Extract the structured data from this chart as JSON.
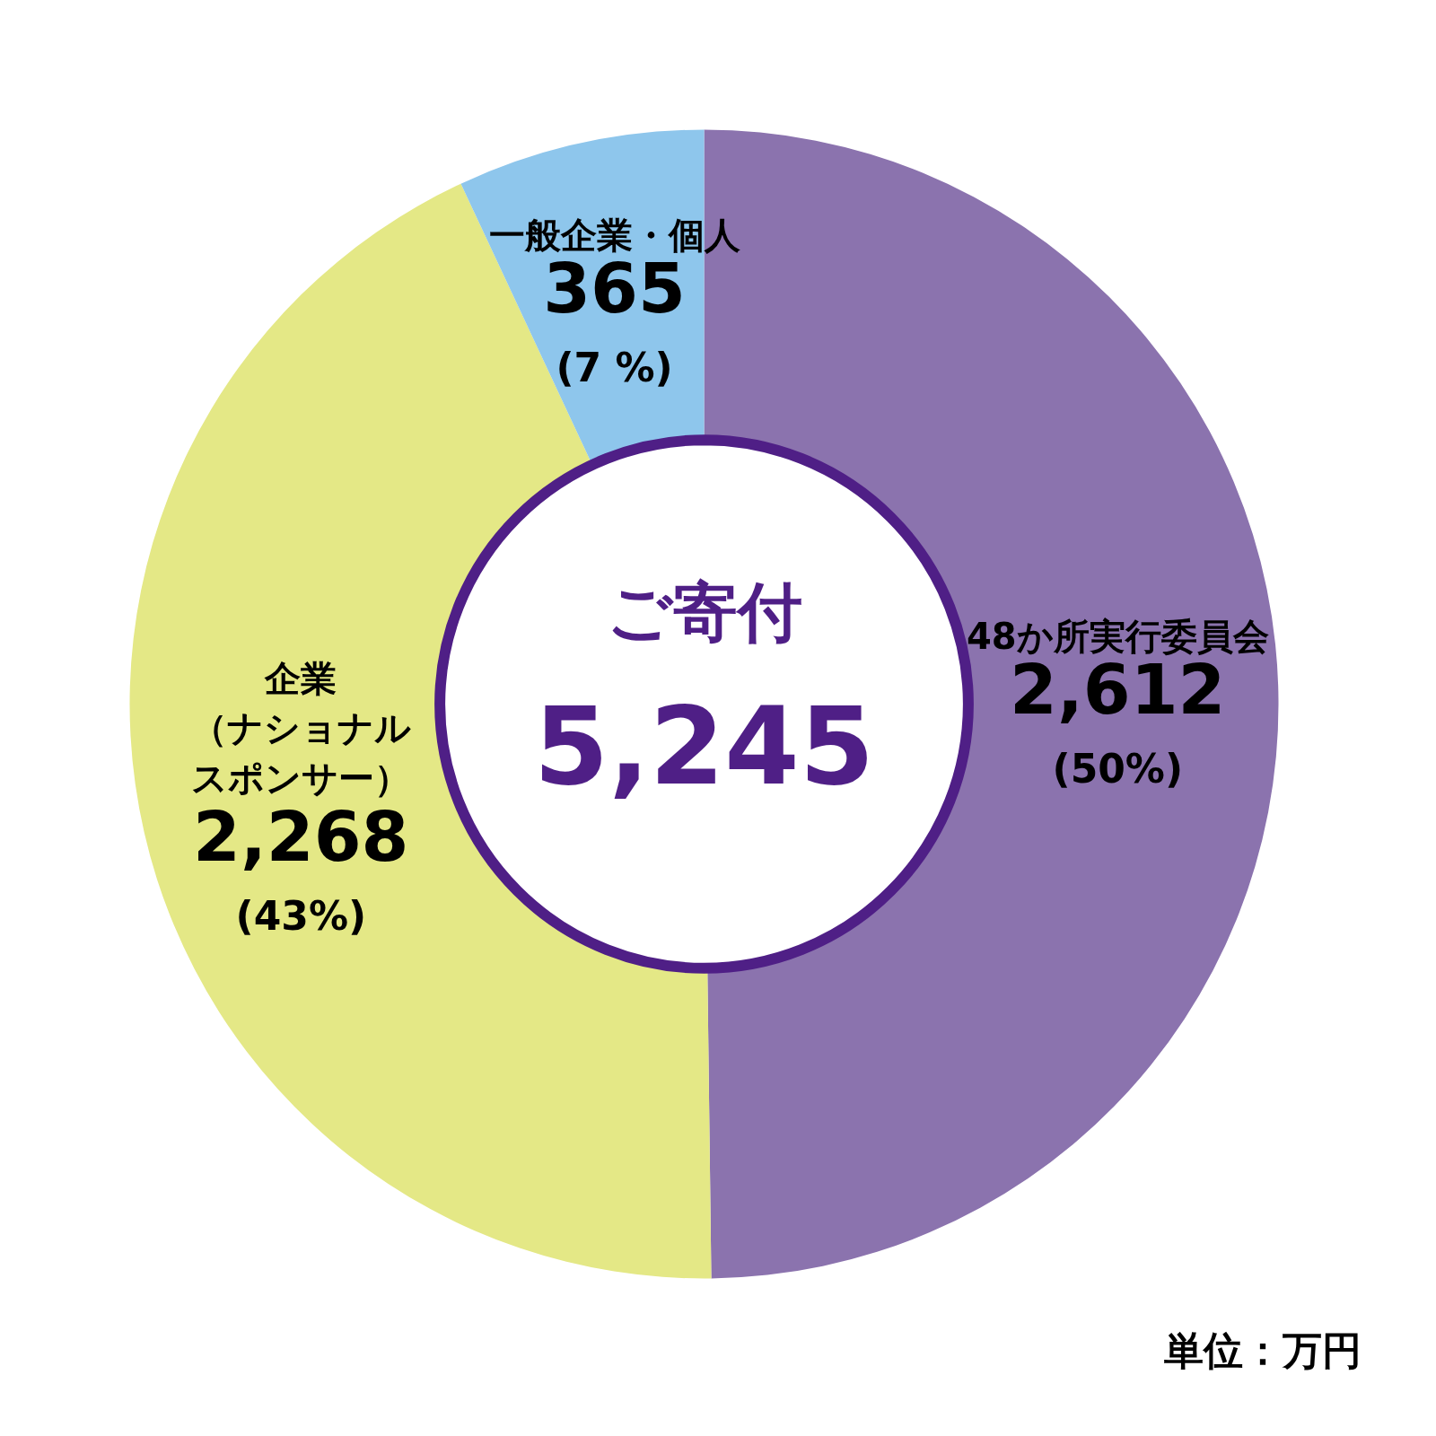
{
  "chart_data": {
    "type": "donut",
    "title": "ご寄付",
    "subtitle": "5,245",
    "categories": [
      "48か所実行委員会",
      "企業（ナショナルスポンサー）",
      "一般企業・個人"
    ],
    "values": [
      2612,
      2268,
      365
    ],
    "colors": [
      "#8b73ae",
      "#e4e886",
      "#8ec6ec"
    ],
    "value_labels": [
      "2,612\n(50%)",
      "2,268\n(43%)",
      "365\n(7 %)"
    ],
    "annotations": [
      "単位：万円"
    ]
  }
}
